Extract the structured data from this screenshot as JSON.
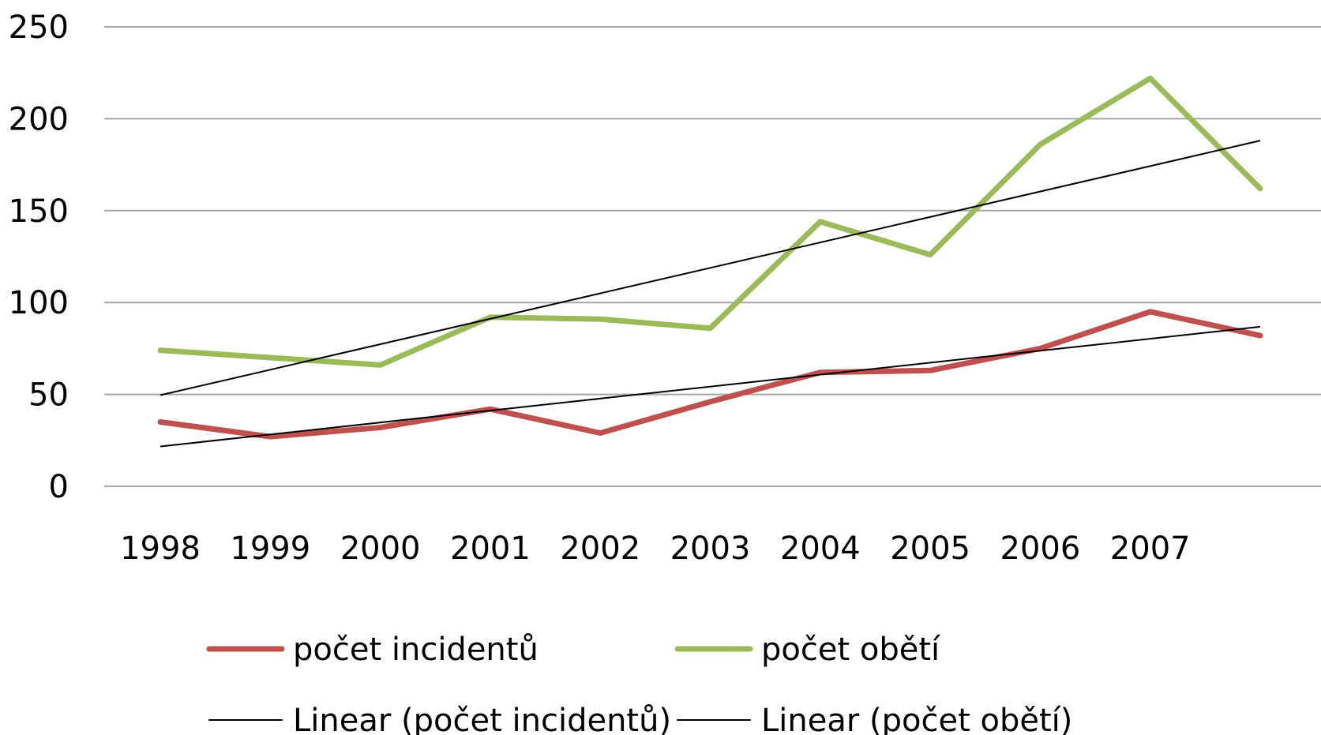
{
  "chart_data": {
    "type": "line",
    "title": "",
    "xlabel": "",
    "ylabel": "",
    "categories": [
      "1998",
      "1999",
      "2000",
      "2001",
      "2002",
      "2003",
      "2004",
      "2005",
      "2006",
      "2007",
      ""
    ],
    "ylim": [
      0,
      250
    ],
    "yticks": [
      0,
      50,
      100,
      150,
      200,
      250
    ],
    "grid": true,
    "legend_position": "bottom",
    "series": [
      {
        "name": "počet incidentů",
        "color": "#c0504d",
        "values": [
          35,
          27,
          32,
          42,
          29,
          46,
          62,
          63,
          75,
          95,
          82
        ]
      },
      {
        "name": "počet obětí",
        "color": "#9bbb59",
        "values": [
          74,
          70,
          66,
          92,
          91,
          86,
          144,
          126,
          186,
          222,
          162
        ]
      }
    ],
    "trendlines": [
      {
        "name": "Linear (počet incidentů)",
        "color": "#000000",
        "of": "počet incidentů",
        "start": 21.7,
        "end": 86.8
      },
      {
        "name": "Linear (počet obětí)",
        "color": "#000000",
        "of": "počet obětí",
        "start": 49.6,
        "end": 188.1
      }
    ]
  }
}
